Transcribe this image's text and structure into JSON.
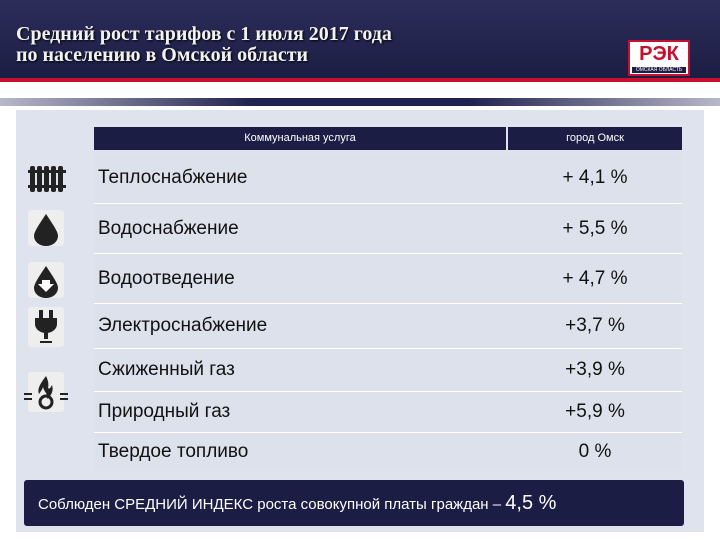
{
  "header": {
    "title_line1": "Средний рост тарифов с 1 июля 2017 года",
    "title_line2": "по населению в Омской области",
    "logo_text": "РЭК",
    "logo_subtext": "ОМСКАЯ ОБЛАСТЬ"
  },
  "table": {
    "col_service": "Коммунальная услуга",
    "col_city": "город Омск",
    "rows": [
      {
        "service": "Теплоснабжение",
        "value": "+ 4,1 %",
        "icon": "radiator-icon"
      },
      {
        "service": "Водоснабжение",
        "value": "+ 5,5 %",
        "icon": "water-drop-icon"
      },
      {
        "service": "Водоотведение",
        "value": "+ 4,7 %",
        "icon": "drain-drop-icon"
      },
      {
        "service": "Электроснабжение",
        "value": "+3,7 %",
        "icon": "power-plug-icon"
      },
      {
        "service": "Сжиженный газ",
        "value": "+3,9 %",
        "icon": "gas-flame-icon"
      },
      {
        "service": "Природный газ",
        "value": "+5,9 %",
        "icon": ""
      },
      {
        "service": "Твердое топливо",
        "value": "0 %",
        "icon": ""
      }
    ]
  },
  "footer": {
    "text": "Соблюден СРЕДНИЙ ИНДЕКС роста совокупной платы граждан –",
    "value": "4,5 %"
  },
  "colors": {
    "navy": "#1b1d44",
    "accent_red": "#c8102e",
    "row_bg": "#dde1ec"
  }
}
